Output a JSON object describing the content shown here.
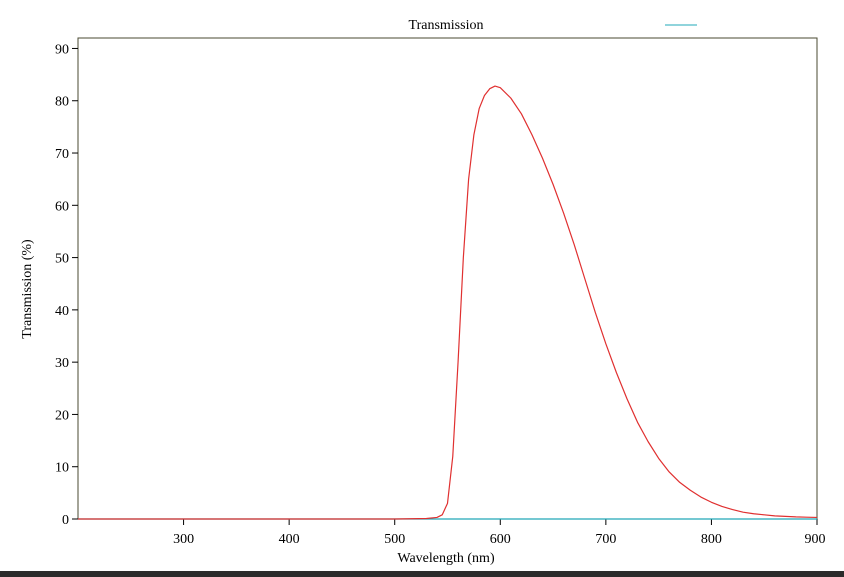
{
  "chart_data": {
    "type": "line",
    "title": "Transmission",
    "xlabel": "Wavelength (nm)",
    "ylabel": "Transmission (%)",
    "xlim": [
      200,
      900
    ],
    "ylim": [
      0,
      92
    ],
    "x_ticks": [
      300,
      400,
      500,
      600,
      700,
      800,
      900
    ],
    "y_ticks": [
      0,
      10,
      20,
      30,
      40,
      50,
      60,
      70,
      80,
      90
    ],
    "grid": false,
    "legend": "top-right",
    "series": [
      {
        "color": "#e03030",
        "x": [
          200,
          300,
          400,
          500,
          530,
          540,
          545,
          550,
          555,
          560,
          565,
          570,
          575,
          580,
          585,
          590,
          595,
          600,
          610,
          620,
          630,
          640,
          650,
          660,
          670,
          680,
          690,
          700,
          710,
          720,
          730,
          740,
          750,
          760,
          770,
          780,
          790,
          800,
          810,
          820,
          830,
          840,
          850,
          860,
          870,
          880,
          890,
          900
        ],
        "y": [
          0,
          0,
          0,
          0,
          0.1,
          0.3,
          0.8,
          3,
          12,
          30,
          50,
          65,
          73.5,
          78.5,
          81,
          82.3,
          82.8,
          82.5,
          80.5,
          77.5,
          73.5,
          69,
          64,
          58.5,
          52.5,
          46,
          39.5,
          33.5,
          28,
          23,
          18.5,
          14.8,
          11.6,
          9,
          7,
          5.5,
          4.2,
          3.2,
          2.4,
          1.8,
          1.3,
          1,
          0.8,
          0.6,
          0.5,
          0.4,
          0.35,
          0.3
        ]
      },
      {
        "color": "#20a8b8",
        "x": [
          200,
          300,
          400,
          500,
          600,
          700,
          800,
          900
        ],
        "y": [
          0,
          0,
          0,
          0,
          0,
          0,
          0,
          0
        ]
      }
    ]
  }
}
